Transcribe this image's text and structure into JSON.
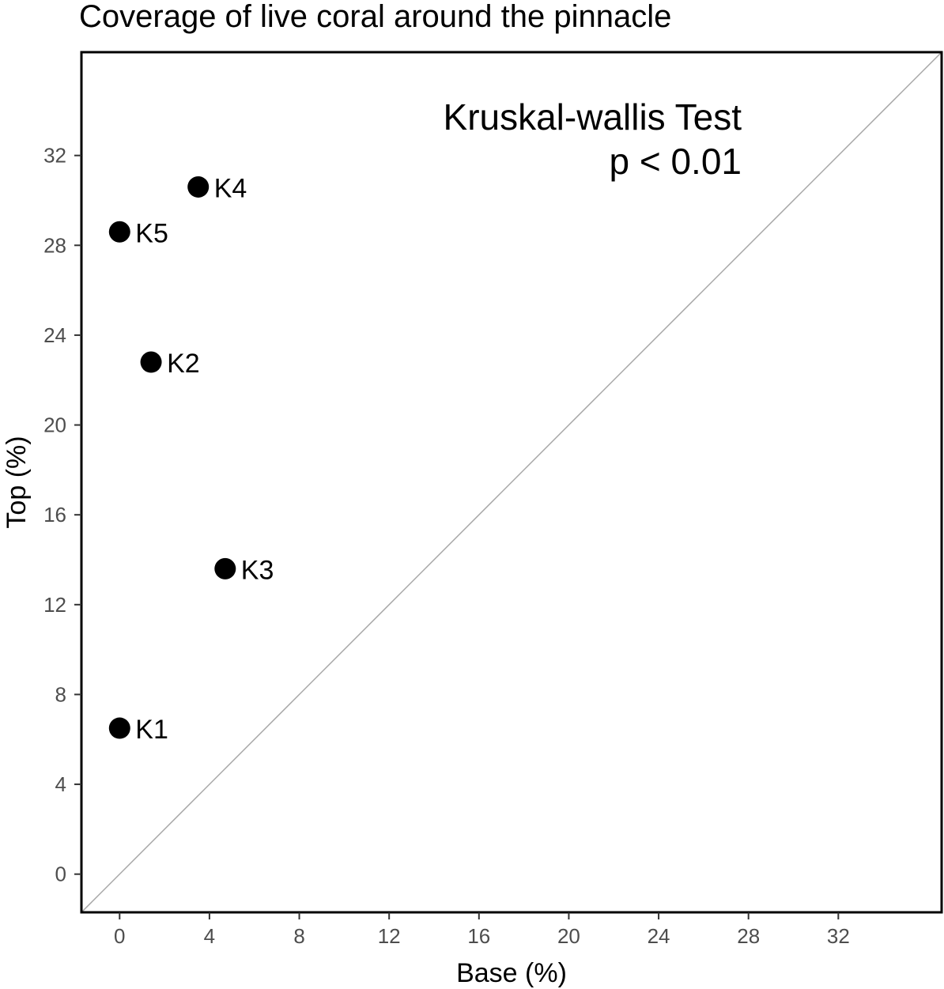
{
  "chart_data": {
    "type": "scatter",
    "title": "Coverage of live coral around the pinnacle",
    "xlabel": "Base (%)",
    "ylabel": "Top (%)",
    "xlim": [
      -1.7,
      36.6
    ],
    "ylim": [
      -1.7,
      36.6
    ],
    "xticks": [
      0,
      4,
      8,
      12,
      16,
      20,
      24,
      28,
      32
    ],
    "yticks": [
      0,
      4,
      8,
      12,
      16,
      20,
      24,
      28,
      32
    ],
    "reference_line": "y = x",
    "grid": false,
    "points": [
      {
        "label": "K1",
        "x": 0.0,
        "y": 6.5
      },
      {
        "label": "K2",
        "x": 1.4,
        "y": 22.8
      },
      {
        "label": "K3",
        "x": 4.7,
        "y": 13.6
      },
      {
        "label": "K4",
        "x": 3.5,
        "y": 30.6
      },
      {
        "label": "K5",
        "x": 0.0,
        "y": 28.6
      }
    ],
    "annotation": [
      "Kruskal-wallis Test",
      "p < 0.01"
    ],
    "colors": {
      "points": "#000000",
      "reference_line": "#a6a6a6",
      "tick_labels": "#4d4d4d",
      "panel_border": "#000000"
    }
  }
}
